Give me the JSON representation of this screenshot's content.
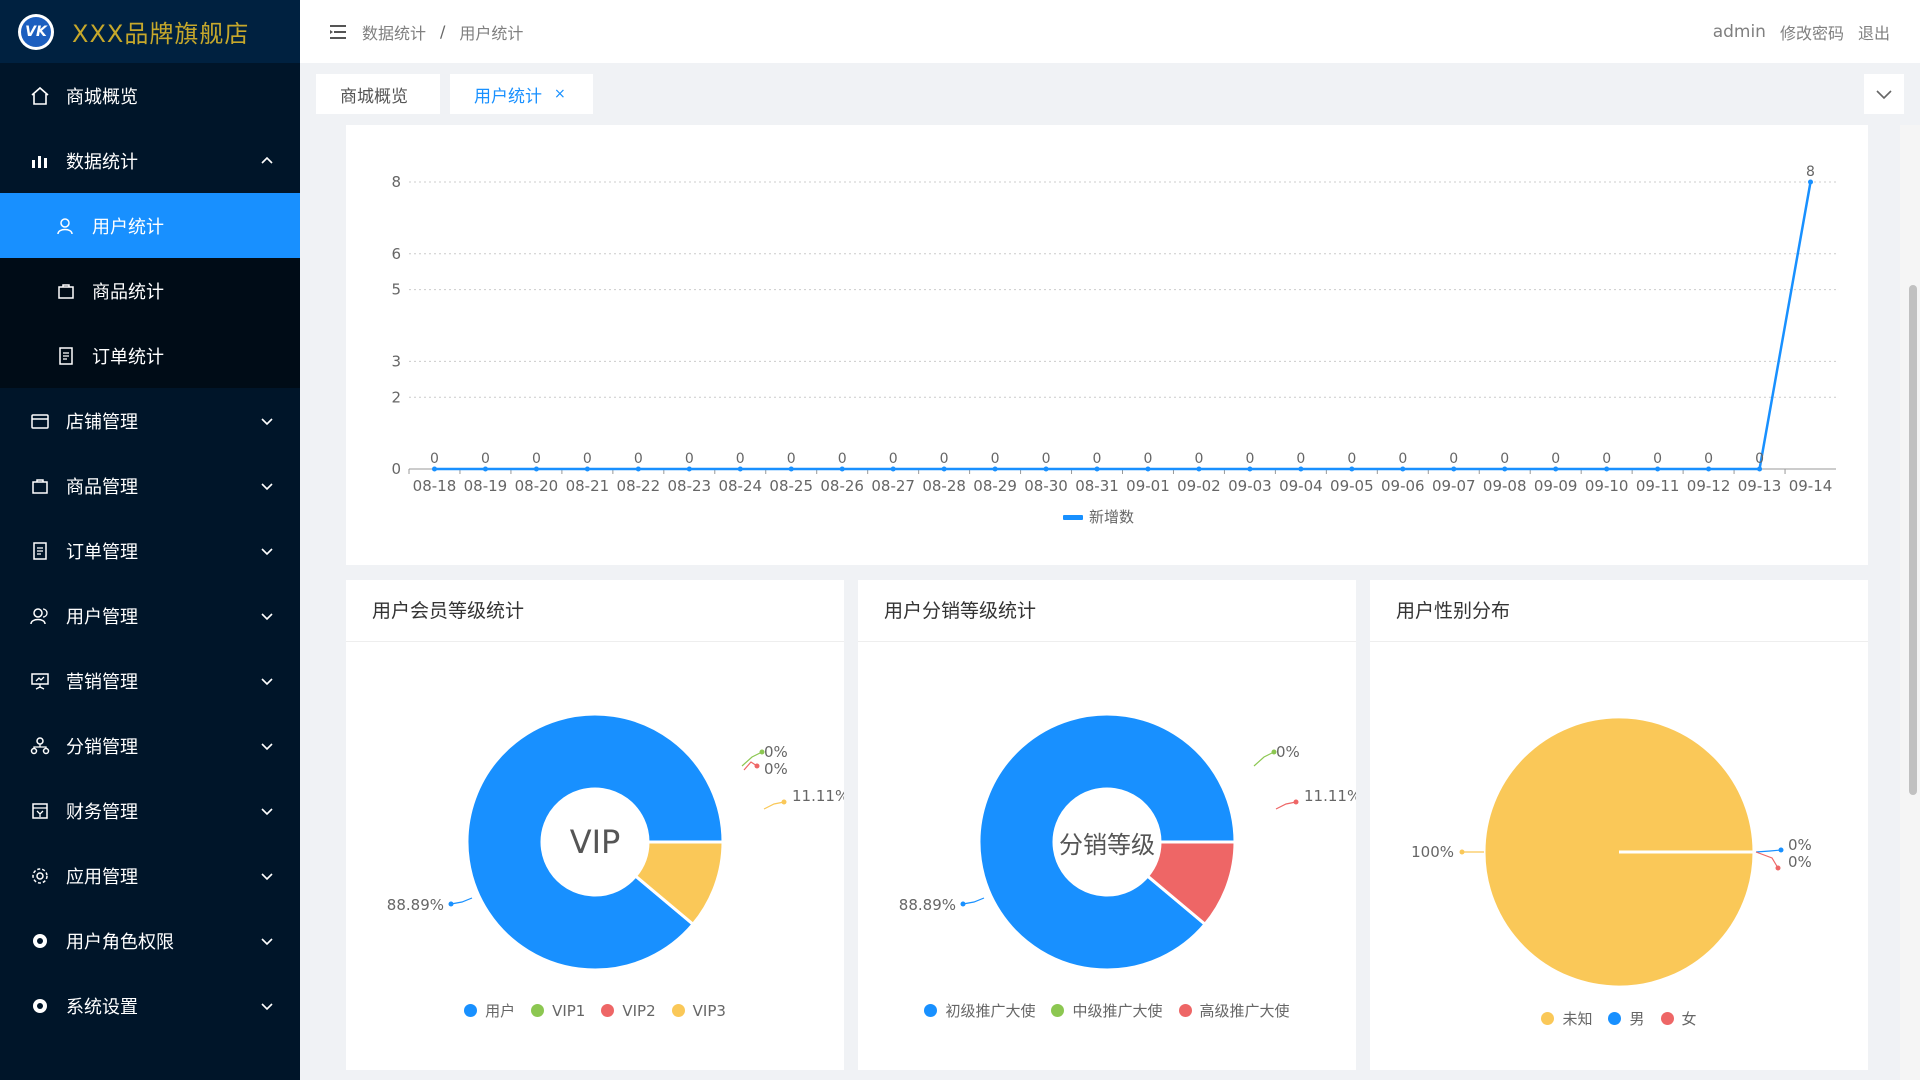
{
  "app": {
    "logo_text": "VK",
    "title": "XXX品牌旗舰店"
  },
  "sidebar": {
    "items": [
      {
        "label": "商城概览",
        "icon": "home-icon"
      },
      {
        "label": "数据统计",
        "icon": "bar-chart-icon",
        "expanded": true,
        "children": [
          {
            "label": "用户统计",
            "icon": "user-icon",
            "active": true
          },
          {
            "label": "商品统计",
            "icon": "shopping-bag-icon"
          },
          {
            "label": "订单统计",
            "icon": "document-icon"
          }
        ]
      },
      {
        "label": "店铺管理",
        "icon": "store-icon"
      },
      {
        "label": "商品管理",
        "icon": "shopping-bag-icon"
      },
      {
        "label": "订单管理",
        "icon": "document-icon"
      },
      {
        "label": "用户管理",
        "icon": "users-icon"
      },
      {
        "label": "营销管理",
        "icon": "presentation-icon"
      },
      {
        "label": "分销管理",
        "icon": "network-icon"
      },
      {
        "label": "财务管理",
        "icon": "finance-icon"
      },
      {
        "label": "应用管理",
        "icon": "gear-icon"
      },
      {
        "label": "用户角色权限",
        "icon": "gear-solid-icon"
      },
      {
        "label": "系统设置",
        "icon": "gear-solid-icon"
      }
    ]
  },
  "header": {
    "breadcrumb": [
      "数据统计",
      "用户统计"
    ],
    "breadcrumb_sep": "/",
    "user": "admin",
    "change_password": "修改密码",
    "logout": "退出"
  },
  "tabs": [
    {
      "label": "商城概览",
      "active": false
    },
    {
      "label": "用户统计",
      "active": true,
      "close": "×"
    }
  ],
  "colors": {
    "accent": "#1890ff",
    "sidebar_bg": "#001529",
    "blue": "#1890ff",
    "green": "#8cc751",
    "red": "#ee6666",
    "yellow": "#fac858"
  },
  "chart_data": [
    {
      "type": "line",
      "x": [
        "08-18",
        "08-19",
        "08-20",
        "08-21",
        "08-22",
        "08-23",
        "08-24",
        "08-25",
        "08-26",
        "08-27",
        "08-28",
        "08-29",
        "08-30",
        "08-31",
        "09-01",
        "09-02",
        "09-03",
        "09-04",
        "09-05",
        "09-06",
        "09-07",
        "09-08",
        "09-09",
        "09-10",
        "09-11",
        "09-12",
        "09-13",
        "09-14"
      ],
      "series": [
        {
          "name": "新增数",
          "values": [
            0,
            0,
            0,
            0,
            0,
            0,
            0,
            0,
            0,
            0,
            0,
            0,
            0,
            0,
            0,
            0,
            0,
            0,
            0,
            0,
            0,
            0,
            0,
            0,
            0,
            0,
            0,
            8
          ]
        }
      ],
      "y_ticks": [
        0,
        2,
        3,
        5,
        6,
        8
      ],
      "ylim": [
        0,
        8
      ],
      "grid": true,
      "legend": "bottom-center"
    },
    {
      "type": "pie",
      "title": "用户会员等级统计",
      "center_label": "VIP",
      "donut": true,
      "slices": [
        {
          "name": "用户",
          "value": 88.89,
          "label": "88.89%",
          "color": "#1890ff"
        },
        {
          "name": "VIP1",
          "value": 0,
          "label": "0%",
          "color": "#8cc751"
        },
        {
          "name": "VIP2",
          "value": 0,
          "label": "0%",
          "color": "#ee6666"
        },
        {
          "name": "VIP3",
          "value": 11.11,
          "label": "11.11%",
          "color": "#fac858"
        }
      ],
      "legend": "bottom-center"
    },
    {
      "type": "pie",
      "title": "用户分销等级统计",
      "center_label": "分销等级",
      "donut": true,
      "slices": [
        {
          "name": "初级推广大使",
          "value": 88.89,
          "label": "88.89%",
          "color": "#1890ff"
        },
        {
          "name": "中级推广大使",
          "value": 0,
          "label": "0%",
          "color": "#8cc751"
        },
        {
          "name": "高级推广大使",
          "value": 11.11,
          "label": "11.11%",
          "color": "#ee6666"
        }
      ],
      "legend": "bottom-center"
    },
    {
      "type": "pie",
      "title": "用户性别分布",
      "donut": false,
      "slices": [
        {
          "name": "未知",
          "value": 100,
          "label": "100%",
          "color": "#fac858"
        },
        {
          "name": "男",
          "value": 0,
          "label": "0%",
          "color": "#1890ff"
        },
        {
          "name": "女",
          "value": 0,
          "label": "0%",
          "color": "#ee6666"
        }
      ],
      "legend": "bottom-center"
    }
  ]
}
